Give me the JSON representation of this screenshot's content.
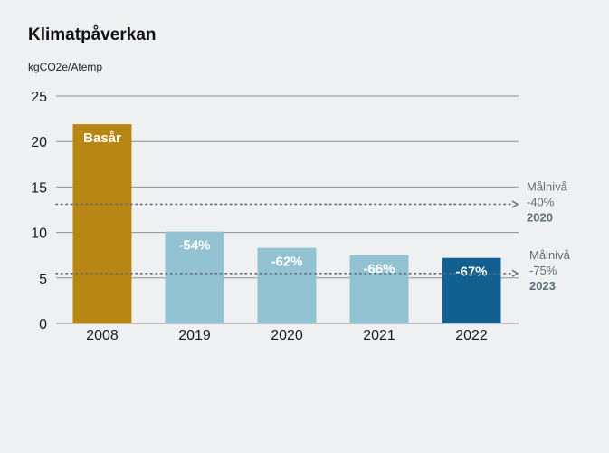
{
  "header": {
    "title": "Klimatpåverkan",
    "unit": "kgCO2e/Atemp"
  },
  "colors": {
    "base": "#b88612",
    "light": "#93c3d3",
    "dark": "#11608f",
    "grid": "#8f8f8f",
    "target": "#5e6e78"
  },
  "chart_data": {
    "type": "bar",
    "title": "Klimatpåverkan",
    "ylabel": "kgCO2e/Atemp",
    "xlabel": "",
    "ylim": [
      0,
      25
    ],
    "yticks": [
      0,
      5,
      10,
      15,
      20,
      25
    ],
    "grid": true,
    "categories": [
      "2008",
      "2019",
      "2020",
      "2021",
      "2022"
    ],
    "values": [
      21.9,
      10.1,
      8.3,
      7.5,
      7.2
    ],
    "bar_labels": [
      "Basår",
      "-54%",
      "-62%",
      "-66%",
      "-67%"
    ],
    "bar_colors": [
      "base",
      "light",
      "light",
      "light",
      "dark"
    ],
    "reference_lines": [
      {
        "value": 13.1,
        "lines": [
          "Målnivå",
          "-40%",
          "2020"
        ]
      },
      {
        "value": 5.5,
        "lines": [
          "Målnivå",
          "-75%",
          "2023"
        ]
      }
    ]
  }
}
